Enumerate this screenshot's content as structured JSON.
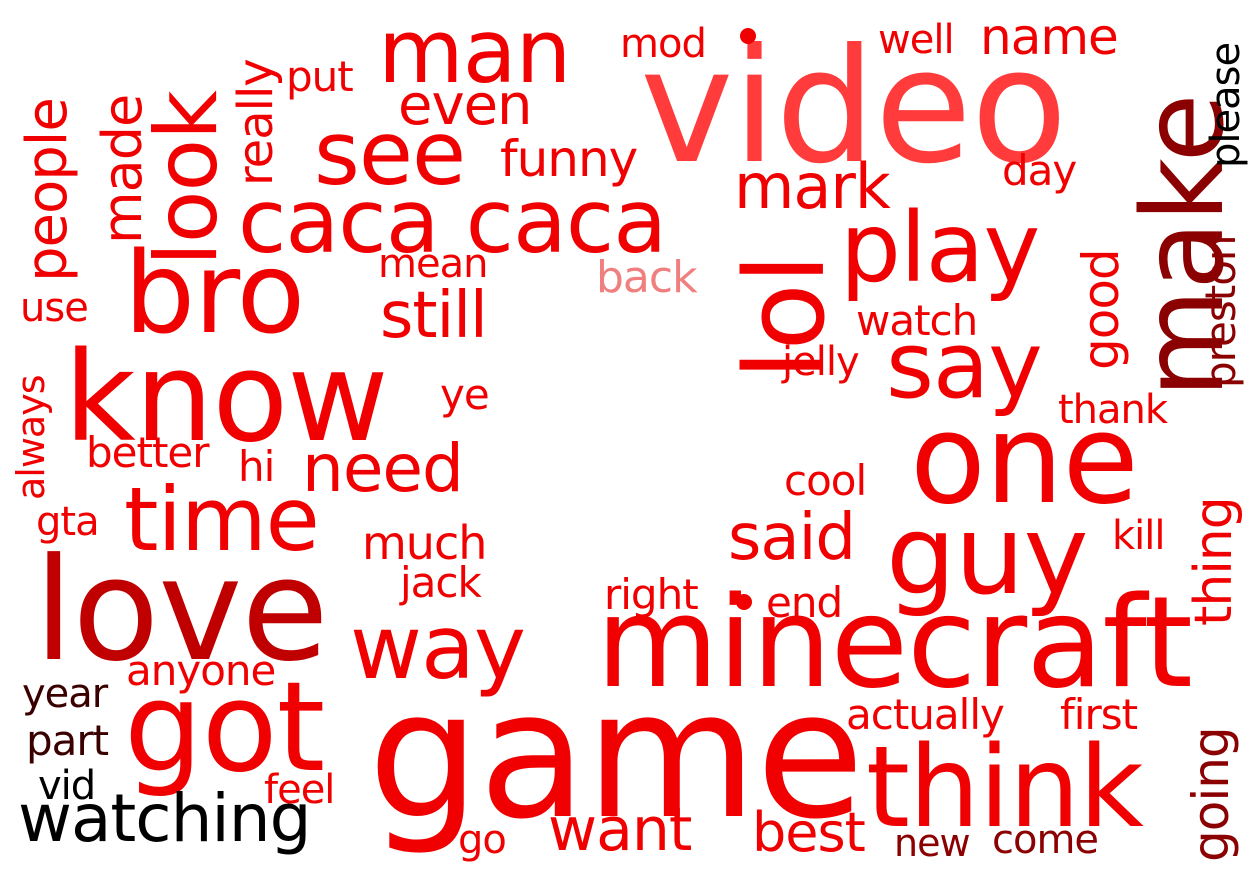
{
  "palette": {
    "red": "#f00000",
    "bright_red": "#e60000",
    "pink_red": "#ff3b3b",
    "light_pink": "#f08080",
    "crimson": "#c00000",
    "dark_red": "#8b0000",
    "maroon": "#3a0000",
    "black": "#000000"
  },
  "words": [
    {
      "text": "video",
      "color": "pink_red"
    },
    {
      "text": "game",
      "color": "red"
    },
    {
      "text": "minecraft",
      "color": "red"
    },
    {
      "text": "know",
      "color": "red"
    },
    {
      "text": "love",
      "color": "crimson"
    },
    {
      "text": "one",
      "color": "red"
    },
    {
      "text": "make",
      "color": "dark_red"
    },
    {
      "text": "got",
      "color": "red"
    },
    {
      "text": "think",
      "color": "red"
    },
    {
      "text": "guy",
      "color": "red"
    },
    {
      "text": "bro",
      "color": "red"
    },
    {
      "text": "caca caca",
      "color": "red"
    },
    {
      "text": "look",
      "color": "red"
    },
    {
      "text": "lol",
      "color": "red"
    },
    {
      "text": "play",
      "color": "red"
    },
    {
      "text": "man",
      "color": "red"
    },
    {
      "text": "see",
      "color": "red"
    },
    {
      "text": "say",
      "color": "red"
    },
    {
      "text": "time",
      "color": "red"
    },
    {
      "text": "way",
      "color": "red"
    },
    {
      "text": "watching",
      "color": "black"
    },
    {
      "text": "people",
      "color": "red"
    },
    {
      "text": "made",
      "color": "red"
    },
    {
      "text": "really",
      "color": "red"
    },
    {
      "text": "put",
      "color": "red"
    },
    {
      "text": "mod",
      "color": "red"
    },
    {
      "text": "well",
      "color": "red"
    },
    {
      "text": "name",
      "color": "red"
    },
    {
      "text": "please",
      "color": "black"
    },
    {
      "text": "even",
      "color": "red"
    },
    {
      "text": "funny",
      "color": "red"
    },
    {
      "text": "day",
      "color": "red"
    },
    {
      "text": "mark",
      "color": "red"
    },
    {
      "text": "mean",
      "color": "red"
    },
    {
      "text": "back",
      "color": "light_pink"
    },
    {
      "text": "good",
      "color": "red"
    },
    {
      "text": "preston",
      "color": "dark_red"
    },
    {
      "text": "still",
      "color": "red"
    },
    {
      "text": "watch",
      "color": "red"
    },
    {
      "text": "use",
      "color": "red"
    },
    {
      "text": "jelly",
      "color": "red"
    },
    {
      "text": "always",
      "color": "red"
    },
    {
      "text": "ye",
      "color": "red"
    },
    {
      "text": "thank",
      "color": "red"
    },
    {
      "text": "thing",
      "color": "red"
    },
    {
      "text": "better",
      "color": "red"
    },
    {
      "text": "hi",
      "color": "red"
    },
    {
      "text": "need",
      "color": "red"
    },
    {
      "text": "cool",
      "color": "red"
    },
    {
      "text": "gta",
      "color": "red"
    },
    {
      "text": "said",
      "color": "red"
    },
    {
      "text": "kill",
      "color": "red"
    },
    {
      "text": "much",
      "color": "red"
    },
    {
      "text": "jack",
      "color": "red"
    },
    {
      "text": "right",
      "color": "red"
    },
    {
      "text": "end",
      "color": "red"
    },
    {
      "text": "anyone",
      "color": "red"
    },
    {
      "text": "year",
      "color": "maroon"
    },
    {
      "text": "actually",
      "color": "red"
    },
    {
      "text": "first",
      "color": "red"
    },
    {
      "text": "going",
      "color": "dark_red"
    },
    {
      "text": "part",
      "color": "maroon"
    },
    {
      "text": "vid",
      "color": "black"
    },
    {
      "text": "feel",
      "color": "red"
    },
    {
      "text": "go",
      "color": "red"
    },
    {
      "text": "want",
      "color": "red"
    },
    {
      "text": "best",
      "color": "red"
    },
    {
      "text": "new",
      "color": "dark_red"
    },
    {
      "text": "come",
      "color": "dark_red"
    }
  ]
}
